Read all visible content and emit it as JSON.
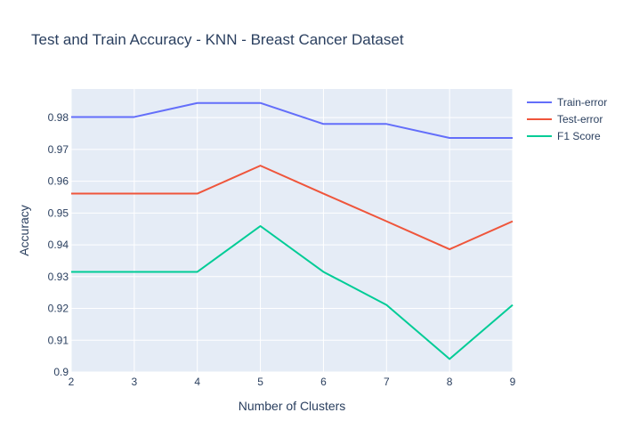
{
  "chart_data": {
    "type": "line",
    "title": "Test and Train Accuracy - KNN - Breast Cancer Dataset",
    "xlabel": "Number of Clusters",
    "ylabel": "Accuracy",
    "x": [
      2,
      3,
      4,
      5,
      6,
      7,
      8,
      9
    ],
    "xlim": [
      2,
      9
    ],
    "ylim": [
      0.9,
      0.989
    ],
    "xticks": [
      "2",
      "3",
      "4",
      "5",
      "6",
      "7",
      "8",
      "9"
    ],
    "yticks": [
      "0.9",
      "0.91",
      "0.92",
      "0.93",
      "0.94",
      "0.95",
      "0.96",
      "0.97",
      "0.98"
    ],
    "grid": true,
    "legend_position": "top-right",
    "series": [
      {
        "name": "Train-error",
        "color": "#636efa",
        "values": [
          0.9802,
          0.9802,
          0.9846,
          0.9846,
          0.978,
          0.978,
          0.9736,
          0.9736
        ]
      },
      {
        "name": "Test-error",
        "color": "#ef553b",
        "values": [
          0.9561,
          0.9561,
          0.9561,
          0.9649,
          0.9561,
          0.9474,
          0.9386,
          0.9474
        ]
      },
      {
        "name": "F1 Score",
        "color": "#00cc96",
        "values": [
          0.9315,
          0.9315,
          0.9315,
          0.9459,
          0.9315,
          0.9211,
          0.9041,
          0.9211
        ]
      }
    ]
  }
}
